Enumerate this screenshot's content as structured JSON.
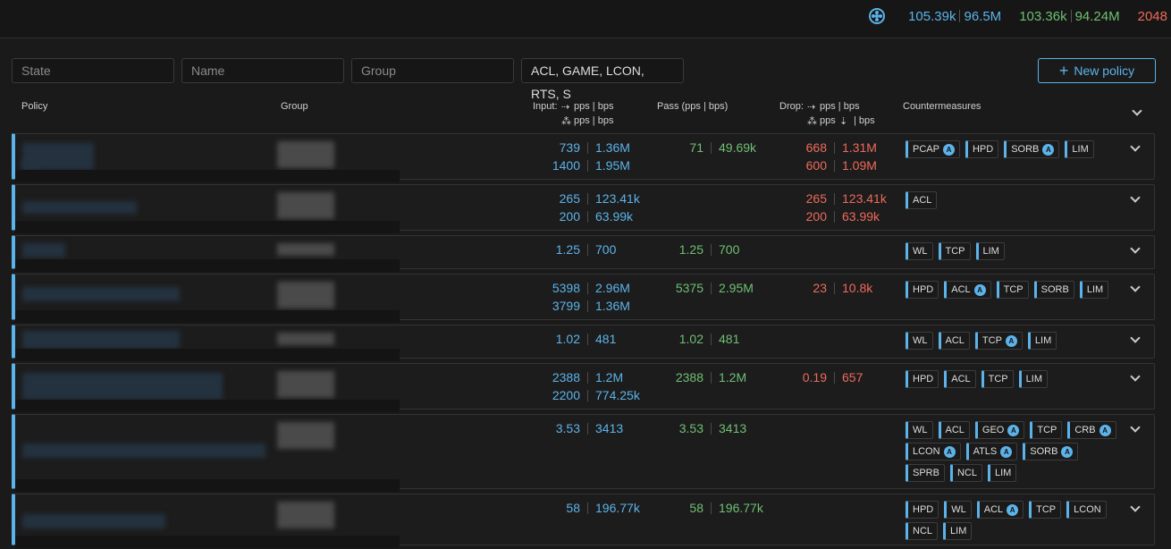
{
  "topbar": {
    "input_pps": "105.39k",
    "input_bps": "96.5M",
    "pass_pps": "103.36k",
    "pass_bps": "94.24M",
    "drop": "2048",
    "icon": "network-icon"
  },
  "filters": {
    "state_placeholder": "State",
    "name_placeholder": "Name",
    "group_placeholder": "Group",
    "countermeasure_value": "ACL, GAME, LCON, RTS, S"
  },
  "new_policy_label": "New policy",
  "headers": {
    "policy": "Policy",
    "group": "Group",
    "input": "Input:",
    "input_line1": "pps | bps",
    "input_line2": "pps | bps",
    "pass": "Pass  (pps | bps)",
    "drop": "Drop:",
    "drop_line1": "pps | bps",
    "drop_line2a": "pps",
    "drop_line2b": "| bps",
    "countermeasures": "Countermeasures"
  },
  "rows": [
    {
      "in1": [
        "739",
        "1.36M"
      ],
      "in2": [
        "1400",
        "1.95M"
      ],
      "pass": [
        "71",
        "49.69k"
      ],
      "drop1": [
        "668",
        "1.31M"
      ],
      "drop2": [
        "600",
        "1.09M"
      ],
      "cms": [
        {
          "l": "PCAP",
          "a": true
        },
        {
          "l": "HPD",
          "a": false
        },
        {
          "l": "SORB",
          "a": true
        },
        {
          "l": "LIM",
          "a": false
        }
      ]
    },
    {
      "in1": [
        "265",
        "123.41k"
      ],
      "in2": [
        "200",
        "63.99k"
      ],
      "pass": null,
      "drop1": [
        "265",
        "123.41k"
      ],
      "drop2": [
        "200",
        "63.99k"
      ],
      "cms": [
        {
          "l": "ACL",
          "a": false
        }
      ]
    },
    {
      "in1": [
        "1.25",
        "700"
      ],
      "in2": null,
      "pass": [
        "1.25",
        "700"
      ],
      "drop1": null,
      "drop2": null,
      "cms": [
        {
          "l": "WL",
          "a": false
        },
        {
          "l": "TCP",
          "a": false
        },
        {
          "l": "LIM",
          "a": false
        }
      ]
    },
    {
      "in1": [
        "5398",
        "2.96M"
      ],
      "in2": [
        "3799",
        "1.36M"
      ],
      "pass": [
        "5375",
        "2.95M"
      ],
      "drop1": [
        "23",
        "10.8k"
      ],
      "drop2": null,
      "cms": [
        {
          "l": "HPD",
          "a": false
        },
        {
          "l": "ACL",
          "a": true
        },
        {
          "l": "TCP",
          "a": false
        },
        {
          "l": "SORB",
          "a": false
        },
        {
          "l": "LIM",
          "a": false
        }
      ]
    },
    {
      "in1": [
        "1.02",
        "481"
      ],
      "in2": null,
      "pass": [
        "1.02",
        "481"
      ],
      "drop1": null,
      "drop2": null,
      "cms": [
        {
          "l": "WL",
          "a": false
        },
        {
          "l": "ACL",
          "a": false
        },
        {
          "l": "TCP",
          "a": true
        },
        {
          "l": "LIM",
          "a": false
        }
      ]
    },
    {
      "in1": [
        "2388",
        "1.2M"
      ],
      "in2": [
        "2200",
        "774.25k"
      ],
      "pass": [
        "2388",
        "1.2M"
      ],
      "drop1": [
        "0.19",
        "657"
      ],
      "drop2": null,
      "cms": [
        {
          "l": "HPD",
          "a": false
        },
        {
          "l": "ACL",
          "a": false
        },
        {
          "l": "TCP",
          "a": false
        },
        {
          "l": "LIM",
          "a": false
        }
      ]
    },
    {
      "in1": [
        "3.53",
        "3413"
      ],
      "in2": null,
      "pass": [
        "3.53",
        "3413"
      ],
      "drop1": null,
      "drop2": null,
      "cms": [
        {
          "l": "WL",
          "a": false
        },
        {
          "l": "ACL",
          "a": false
        },
        {
          "l": "GEO",
          "a": true
        },
        {
          "l": "TCP",
          "a": false
        },
        {
          "l": "CRB",
          "a": true
        },
        {
          "l": "LCON",
          "a": true
        },
        {
          "l": "ATLS",
          "a": true
        },
        {
          "l": "SORB",
          "a": true
        },
        {
          "l": "SPRB",
          "a": false
        },
        {
          "l": "NCL",
          "a": false
        },
        {
          "l": "LIM",
          "a": false
        }
      ]
    },
    {
      "in1": [
        "58",
        "196.77k"
      ],
      "in2": null,
      "pass": [
        "58",
        "196.77k"
      ],
      "drop1": null,
      "drop2": null,
      "cms": [
        {
          "l": "HPD",
          "a": false
        },
        {
          "l": "WL",
          "a": false
        },
        {
          "l": "ACL",
          "a": true
        },
        {
          "l": "TCP",
          "a": false
        },
        {
          "l": "LCON",
          "a": false
        },
        {
          "l": "NCL",
          "a": false
        },
        {
          "l": "LIM",
          "a": false
        }
      ]
    }
  ],
  "auto_badge": "A",
  "colors": {
    "accent": "#5cb3ea",
    "pass": "#6fbf73",
    "drop": "#ef6a5a"
  }
}
